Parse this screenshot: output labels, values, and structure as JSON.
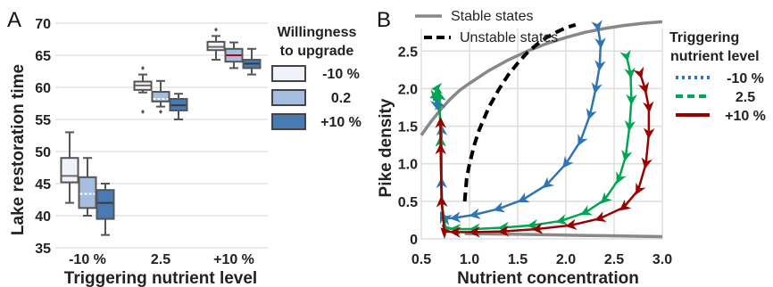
{
  "chart_data": [
    {
      "type": "box",
      "panel_label": "A",
      "xlabel": "Triggering nutrient level",
      "ylabel": "Lake restoration time",
      "ylim": [
        35,
        70
      ],
      "yticks": [
        35,
        40,
        45,
        50,
        55,
        60,
        65,
        70
      ],
      "categories": [
        "-10 %",
        "2.5",
        "+10 %"
      ],
      "legend": {
        "title_line1": "Willingness",
        "title_line2": "to upgrade",
        "placement": "right"
      },
      "series": [
        {
          "name": "-10 %",
          "color": "#eff3f9",
          "median_color": "#6b6b6b",
          "boxes": [
            {
              "whislo": 42,
              "q1": 45.2,
              "med": 46.2,
              "q3": 49,
              "whishi": 53,
              "fliers": []
            },
            {
              "whislo": 59.2,
              "q1": 59.6,
              "med": 60.3,
              "q3": 60.9,
              "whishi": 62,
              "fliers": [
                56.2,
                63
              ]
            },
            {
              "whislo": 64.3,
              "q1": 65.8,
              "med": 66.3,
              "q3": 67.1,
              "whishi": 68,
              "fliers": [
                69
              ]
            }
          ]
        },
        {
          "name": "0.2",
          "color": "#a6bedd",
          "median_color": "#ffffff",
          "boxes": [
            {
              "whislo": 40,
              "q1": 41.2,
              "med": 43.4,
              "q3": 46,
              "whishi": 49,
              "fliers": []
            },
            {
              "whislo": 57,
              "q1": 57.8,
              "med": 58.2,
              "q3": 59.3,
              "whishi": 61,
              "fliers": [
                56.2
              ]
            },
            {
              "whislo": 63,
              "q1": 64,
              "med": 65,
              "q3": 66,
              "whishi": 67,
              "fliers": []
            }
          ]
        },
        {
          "name": "+10 %",
          "color": "#4a7ab4",
          "median_color": "#3a3a3a",
          "boxes": [
            {
              "whislo": 37,
              "q1": 39.5,
              "med": 42,
              "q3": 44,
              "whishi": 45,
              "fliers": []
            },
            {
              "whislo": 55,
              "q1": 56.4,
              "med": 57.2,
              "q3": 58.2,
              "whishi": 59,
              "fliers": []
            },
            {
              "whislo": 62,
              "q1": 63,
              "med": 63.7,
              "q3": 64.3,
              "whishi": 66,
              "fliers": []
            }
          ]
        }
      ]
    },
    {
      "type": "line",
      "panel_label": "B",
      "xlabel": "Nutrient concentration",
      "ylabel": "Pike density",
      "xlim": [
        0.5,
        3.0
      ],
      "ylim": [
        0,
        2.8
      ],
      "xticks": [
        0.5,
        1.0,
        1.5,
        2.0,
        2.5,
        3.0
      ],
      "yticks": [
        0,
        0.5,
        1.0,
        1.5,
        2.0,
        2.5
      ],
      "xtick_labels": [
        "0.5",
        "1.0",
        "1.5",
        "2.0",
        "2.5",
        "3.0"
      ],
      "ytick_labels": [
        "0",
        "0.5",
        "1.0",
        "1.5",
        "2.0",
        "2.5"
      ],
      "legend1": {
        "placement": "top",
        "items": [
          {
            "label": "Stable states",
            "color": "#888888",
            "dash": "solid"
          },
          {
            "label": "Unstable states",
            "color": "#000000",
            "dash": "dashed"
          }
        ]
      },
      "legend2": {
        "title_line1": "Triggering",
        "title_line2": "nutrient level",
        "placement": "right"
      },
      "stable_upper": {
        "x": [
          0.5,
          0.6,
          0.7,
          0.8,
          0.9,
          1.0,
          1.2,
          1.4,
          1.6,
          1.8,
          2.0,
          2.2,
          2.4,
          2.6,
          2.8,
          3.0
        ],
        "y": [
          1.38,
          1.56,
          1.72,
          1.86,
          1.98,
          2.07,
          2.24,
          2.38,
          2.5,
          2.6,
          2.68,
          2.75,
          2.8,
          2.84,
          2.87,
          2.89
        ]
      },
      "stable_lower": {
        "x": [
          0.95,
          1.5,
          2.0,
          2.5,
          3.0
        ],
        "y": [
          0.07,
          0.06,
          0.05,
          0.04,
          0.03
        ]
      },
      "unstable": {
        "x": [
          0.95,
          0.97,
          1.0,
          1.05,
          1.1,
          1.2,
          1.3,
          1.4,
          1.5,
          1.6,
          1.7,
          1.8,
          1.9,
          2.0,
          2.1
        ],
        "y": [
          0.5,
          0.8,
          1.0,
          1.25,
          1.45,
          1.75,
          1.98,
          2.18,
          2.34,
          2.48,
          2.59,
          2.68,
          2.75,
          2.81,
          2.85
        ]
      },
      "series": [
        {
          "name": "-10 %",
          "color": "#2f75b5",
          "dash": "dotted",
          "x": [
            2.33,
            2.36,
            2.35,
            2.31,
            2.25,
            2.15,
            2.0,
            1.8,
            1.55,
            1.3,
            1.05,
            0.85,
            0.75,
            0.72,
            0.71,
            0.71,
            0.68,
            0.64,
            0.66
          ],
          "y": [
            2.83,
            2.6,
            2.3,
            2.0,
            1.65,
            1.3,
            1.0,
            0.72,
            0.52,
            0.4,
            0.32,
            0.28,
            0.27,
            0.3,
            0.75,
            1.45,
            1.8,
            1.9,
            1.78
          ]
        },
        {
          "name": "2.5",
          "color": "#00a651",
          "dash": "dashed",
          "x": [
            2.63,
            2.67,
            2.68,
            2.66,
            2.62,
            2.55,
            2.4,
            2.2,
            1.95,
            1.65,
            1.35,
            1.05,
            0.85,
            0.75,
            0.71,
            0.7,
            0.69,
            0.66,
            0.64
          ],
          "y": [
            2.43,
            2.2,
            1.85,
            1.5,
            1.1,
            0.8,
            0.52,
            0.35,
            0.24,
            0.18,
            0.15,
            0.13,
            0.13,
            0.14,
            0.5,
            1.3,
            1.9,
            2.0,
            1.9
          ]
        },
        {
          "name": "+10 %",
          "color": "#990000",
          "dash": "solid",
          "x": [
            2.77,
            2.82,
            2.86,
            2.86,
            2.83,
            2.75,
            2.6,
            2.35,
            2.05,
            1.7,
            1.35,
            1.05,
            0.85,
            0.74,
            0.71,
            0.7,
            0.7
          ],
          "y": [
            2.2,
            2.0,
            1.75,
            1.4,
            1.0,
            0.65,
            0.42,
            0.27,
            0.18,
            0.13,
            0.1,
            0.09,
            0.09,
            0.1,
            0.5,
            1.2,
            1.55
          ]
        }
      ]
    }
  ]
}
